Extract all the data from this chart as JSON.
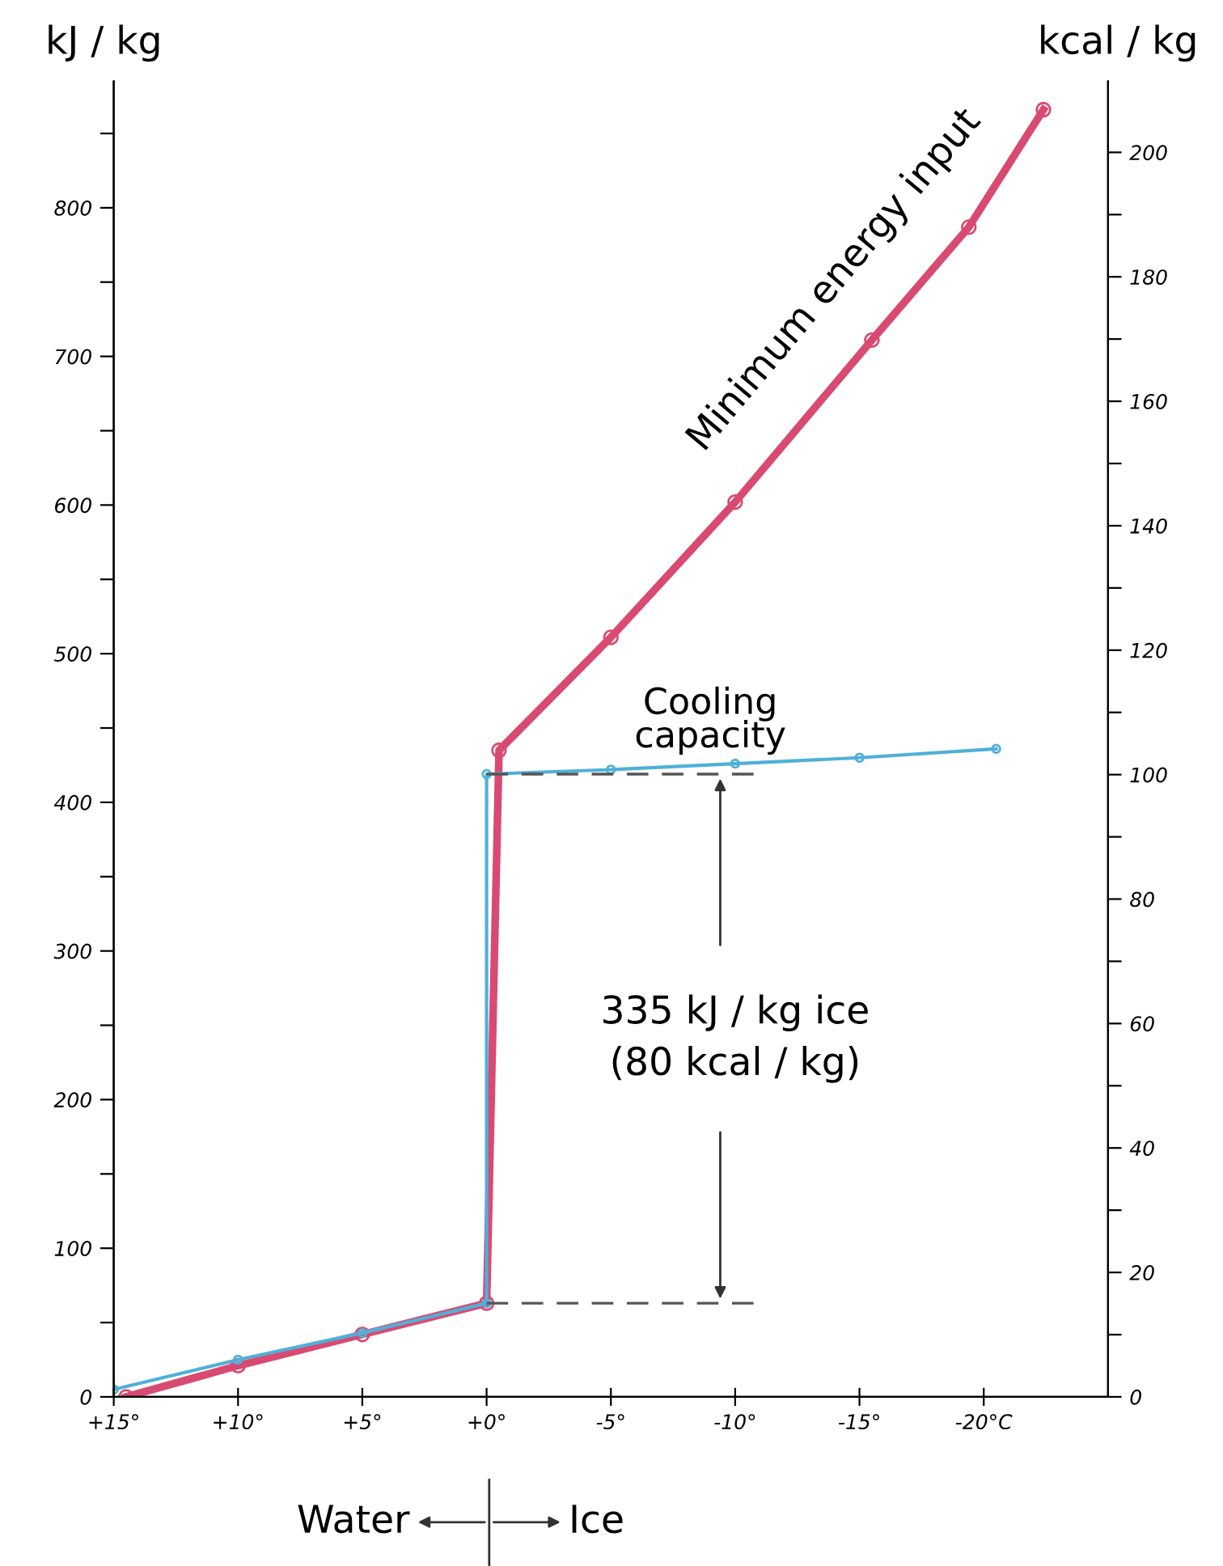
{
  "chart_data": {
    "type": "line",
    "ylabel": "kJ / kg",
    "y2label": "kcal / kg",
    "x": [
      15,
      10,
      5,
      0,
      0,
      -5,
      -10,
      -15,
      -20.5
    ],
    "series": [
      {
        "name": "Minimum energy input",
        "color": "#d94a72",
        "x": [
          14.5,
          10,
          5,
          0,
          -0.5,
          -5,
          -10,
          -15.5,
          -19.4,
          -22.4
        ],
        "values": [
          0,
          21,
          42,
          63,
          435,
          511,
          602,
          711,
          787,
          866
        ]
      },
      {
        "name": "Cooling capacity",
        "color": "#4fb0d8",
        "values": [
          5,
          25,
          43,
          63,
          419,
          422,
          426,
          430,
          436
        ]
      }
    ],
    "xlim": [
      15,
      -25
    ],
    "xticks": [
      {
        "value": 15,
        "label": "+15°"
      },
      {
        "value": 10,
        "label": "+10°"
      },
      {
        "value": 5,
        "label": "+5°"
      },
      {
        "value": 0,
        "label": "+0°"
      },
      {
        "value": -5,
        "label": "-5°"
      },
      {
        "value": -10,
        "label": "-10°"
      },
      {
        "value": -15,
        "label": "-15°"
      },
      {
        "value": -20,
        "label": "-20°C"
      }
    ],
    "ylim": [
      0,
      885
    ],
    "yticks": [
      0,
      {
        "value": 50,
        "label": null
      },
      100,
      {
        "value": 150,
        "label": null
      },
      200,
      {
        "value": 250,
        "label": null
      },
      300,
      {
        "value": 350,
        "label": null
      },
      400,
      {
        "value": 450,
        "label": null
      },
      500,
      {
        "value": 550,
        "label": null
      },
      600,
      {
        "value": 650,
        "label": null
      },
      700,
      {
        "value": 750,
        "label": null
      },
      800,
      {
        "value": 850,
        "label": null
      }
    ],
    "y2lim": [
      0,
      211.4
    ],
    "y2ticks": [
      0,
      {
        "value": 10,
        "label": null
      },
      20,
      {
        "value": 30,
        "label": null
      },
      40,
      {
        "value": 50,
        "label": null
      },
      60,
      {
        "value": 70,
        "label": null
      },
      80,
      {
        "value": 90,
        "label": null
      },
      100,
      {
        "value": 110,
        "label": null
      },
      120,
      {
        "value": 130,
        "label": null
      },
      140,
      {
        "value": 150,
        "label": null
      },
      160,
      {
        "value": 170,
        "label": null
      },
      180,
      {
        "value": 190,
        "label": null
      },
      200
    ],
    "annotations": [
      "335 kJ / kg ice\n(80 kcal / kg)",
      "Water",
      "Ice"
    ],
    "marker": "circle",
    "line_style": "solid",
    "grid": false,
    "legend": false
  }
}
